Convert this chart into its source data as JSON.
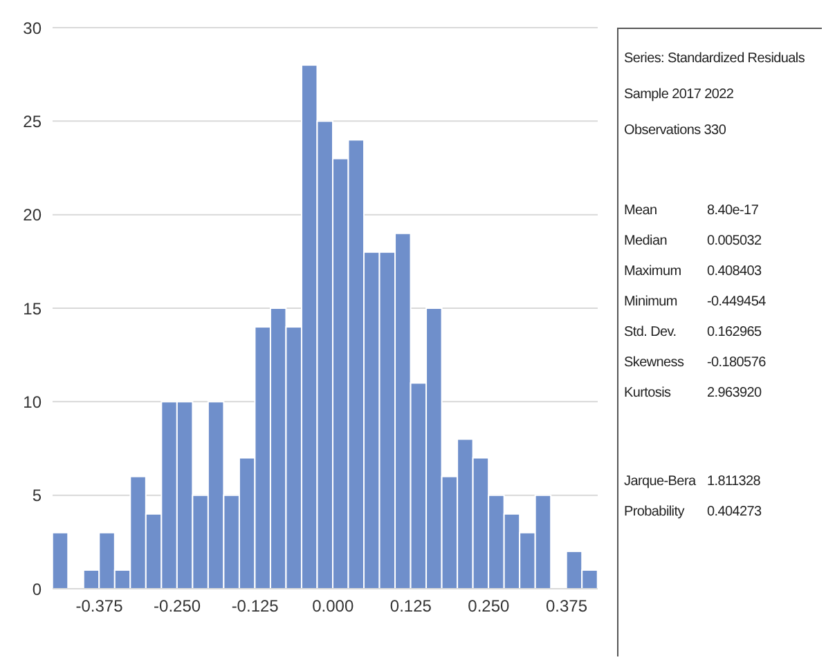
{
  "chart_data": {
    "type": "histogram",
    "bins": [
      -0.45,
      -0.425,
      -0.4,
      -0.375,
      -0.35,
      -0.325,
      -0.3,
      -0.275,
      -0.25,
      -0.225,
      -0.2,
      -0.175,
      -0.15,
      -0.125,
      -0.1,
      -0.075,
      -0.05,
      -0.025,
      0,
      0.025,
      0.05,
      0.075,
      0.1,
      0.125,
      0.15,
      0.175,
      0.2,
      0.225,
      0.25,
      0.275,
      0.3,
      0.325,
      0.35,
      0.375,
      0.4,
      0.425
    ],
    "values": [
      3,
      0,
      1,
      3,
      1,
      6,
      4,
      10,
      10,
      5,
      10,
      5,
      7,
      14,
      15,
      14,
      28,
      25,
      23,
      24,
      18,
      18,
      19,
      11,
      15,
      6,
      8,
      7,
      5,
      4,
      3,
      5,
      0,
      2,
      1
    ],
    "color": "#6f8fcb",
    "xlim": [
      -0.45,
      0.425
    ],
    "xticks": [
      {
        "value": -0.375,
        "label": "-0.375"
      },
      {
        "value": -0.25,
        "label": "-0.250"
      },
      {
        "value": -0.125,
        "label": "-0.125"
      },
      {
        "value": 0,
        "label": "0.000"
      },
      {
        "value": 0.125,
        "label": "0.125"
      },
      {
        "value": 0.25,
        "label": "0.250"
      },
      {
        "value": 0.375,
        "label": "0.375"
      }
    ],
    "ylim": [
      0,
      30
    ],
    "yticks": [
      0,
      5,
      10,
      15,
      20,
      25,
      30
    ],
    "grid": "y",
    "annotations": [
      "Series: Standardized Residuals",
      "Sample 2017 2022",
      "Observations 330",
      "Mean",
      "8.40e-17",
      "Median",
      "0.005032",
      "Maximum",
      "0.408403",
      "Minimum",
      "-0.449454",
      "Std. Dev.",
      "0.162965",
      "Skewness",
      "-0.180576",
      "Kurtosis",
      "2.963920",
      "Jarque-Bera",
      "1.811328",
      "Probability",
      "0.404273"
    ]
  }
}
